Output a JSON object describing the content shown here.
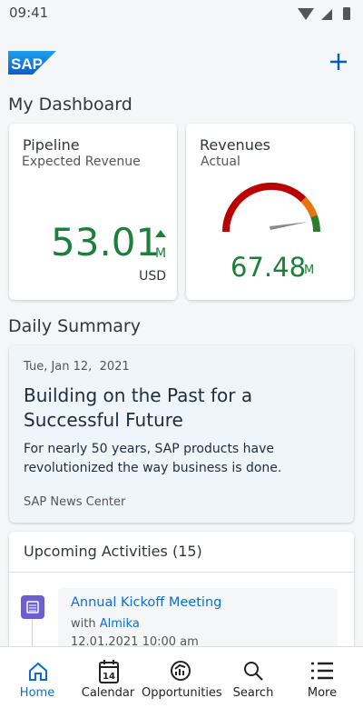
{
  "status_bar": {
    "time": "09:41"
  },
  "header": {
    "logo": "SAP"
  },
  "dashboard": {
    "title": "My Dashboard",
    "pipeline": {
      "title": "Pipeline",
      "subtitle": "Expected Revenue",
      "value": "53.01",
      "unit": "M",
      "currency": "USD"
    },
    "revenues": {
      "title": "Revenues",
      "subtitle": "Actual",
      "value": "67.48",
      "unit": "M"
    }
  },
  "daily_summary": {
    "title": "Daily Summary",
    "date": "Tue, Jan 12,  2021",
    "headline": "Building on the Past for a Successful Future",
    "body": "For nearly 50 years, SAP products have revolutionized the way business is done.",
    "source": "SAP News Center"
  },
  "activities": {
    "title": "Upcoming Activities (15)",
    "items": [
      {
        "title": "Annual Kickoff Meeting",
        "with_label": "with",
        "with_name": "Almika",
        "datetime": "12.01.2021 10:00 am"
      }
    ]
  },
  "nav": {
    "calendar_icon_day": "14",
    "items": [
      {
        "label": "Home"
      },
      {
        "label": "Calendar"
      },
      {
        "label": "Opportunities"
      },
      {
        "label": "Search"
      },
      {
        "label": "More"
      }
    ]
  }
}
